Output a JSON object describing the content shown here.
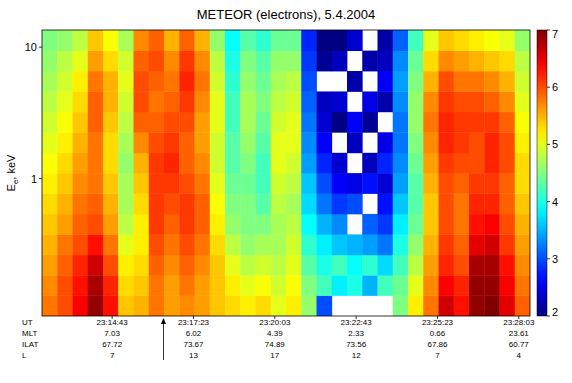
{
  "chart_data": {
    "type": "heatmap",
    "title": "METEOR (electrons), 5.4.2004",
    "ylabel": "Ee, keV",
    "xlabel": "UT",
    "log": "y",
    "xlim": [
      83545,
      84505
    ],
    "ylim": [
      0.09,
      13.5
    ],
    "xticks": [
      {
        "value": 83683,
        "label": "23:14:43"
      },
      {
        "value": 83843,
        "label": "23:17:23"
      },
      {
        "value": 84003,
        "label": "23:20:03"
      },
      {
        "value": 84163,
        "label": "23:22:43"
      },
      {
        "value": 84323,
        "label": "23:25:23"
      },
      {
        "value": 84483,
        "label": "23:28:03"
      }
    ],
    "yticks": [
      1,
      10
    ],
    "x_rows": [
      {
        "name": "MLT",
        "values": [
          7.03,
          6.02,
          4.39,
          2.33,
          0.66,
          23.61
        ]
      },
      {
        "name": "ILAT",
        "values": [
          67.72,
          73.67,
          74.89,
          73.56,
          67.86,
          60.77
        ]
      },
      {
        "name": "L",
        "values": [
          7,
          13,
          17,
          12,
          7,
          4
        ]
      }
    ],
    "arrow_time": 83784,
    "x_edges": [
      83545,
      83575,
      83605,
      83635,
      83665,
      83695,
      83725,
      83755,
      83785,
      83815,
      83845,
      83875,
      83905,
      83935,
      83965,
      83995,
      84025,
      84055,
      84085,
      84115,
      84145,
      84175,
      84205,
      84235,
      84265,
      84295,
      84325,
      84355,
      84385,
      84415,
      84445,
      84475,
      84505
    ],
    "y_edges": [
      0.09,
      0.129,
      0.184,
      0.263,
      0.376,
      0.538,
      0.77,
      1.1,
      1.57,
      2.25,
      3.22,
      4.6,
      6.58,
      9.41,
      13.5
    ],
    "cells": [
      [
        5.8,
        5.7,
        5.6,
        5.5,
        5.4,
        5.3,
        5.2,
        5.1,
        5.0,
        4.9,
        4.8,
        4.7,
        4.6,
        4.5
      ],
      [
        6.0,
        6.0,
        5.9,
        5.8,
        5.6,
        5.5,
        5.4,
        5.3,
        5.2,
        5.1,
        5.0,
        4.9,
        4.8,
        4.6
      ],
      [
        6.4,
        6.3,
        6.2,
        6.0,
        5.9,
        5.8,
        5.7,
        5.6,
        5.5,
        5.4,
        5.3,
        5.2,
        5.0,
        4.8
      ],
      [
        6.9,
        6.8,
        6.6,
        6.3,
        6.0,
        5.9,
        5.8,
        5.8,
        5.8,
        5.9,
        5.9,
        5.8,
        5.6,
        5.4
      ],
      [
        6.3,
        6.2,
        6.0,
        5.8,
        5.6,
        5.5,
        5.4,
        5.3,
        5.3,
        5.4,
        5.5,
        5.5,
        5.3,
        5.1
      ],
      [
        5.4,
        5.3,
        5.2,
        5.0,
        4.8,
        4.7,
        4.7,
        4.6,
        4.7,
        4.8,
        4.9,
        5.0,
        4.9,
        4.7
      ],
      [
        5.5,
        5.4,
        5.3,
        5.2,
        5.2,
        5.3,
        5.4,
        5.5,
        5.7,
        5.9,
        6.0,
        6.0,
        5.9,
        5.7
      ],
      [
        5.8,
        5.8,
        5.9,
        6.0,
        6.1,
        6.1,
        6.1,
        6.1,
        6.0,
        5.9,
        5.8,
        5.9,
        6.0,
        5.9
      ],
      [
        5.6,
        5.6,
        5.7,
        5.8,
        5.9,
        6.0,
        6.1,
        6.2,
        6.1,
        6.0,
        5.9,
        5.8,
        5.7,
        5.5
      ],
      [
        5.7,
        5.8,
        5.9,
        6.0,
        6.1,
        6.1,
        6.0,
        5.9,
        5.9,
        6.0,
        6.1,
        6.2,
        6.1,
        5.9
      ],
      [
        5.6,
        5.6,
        5.7,
        5.8,
        5.9,
        5.9,
        5.8,
        5.7,
        5.6,
        5.6,
        5.7,
        5.8,
        5.7,
        5.5
      ],
      [
        5.4,
        5.4,
        5.4,
        5.3,
        5.2,
        5.1,
        5.0,
        4.9,
        4.9,
        5.0,
        5.0,
        4.9,
        4.8,
        4.6
      ],
      [
        5.3,
        5.2,
        5.0,
        4.8,
        4.6,
        4.5,
        4.4,
        4.3,
        4.3,
        4.2,
        4.2,
        4.1,
        4.0,
        3.9
      ],
      [
        5.2,
        5.0,
        4.8,
        4.6,
        4.5,
        4.5,
        4.4,
        4.5,
        4.6,
        4.7,
        4.7,
        4.6,
        4.5,
        4.3
      ],
      [
        5.3,
        5.1,
        4.9,
        4.7,
        4.5,
        4.3,
        4.2,
        4.2,
        4.3,
        4.4,
        4.5,
        4.4,
        4.3,
        4.1
      ],
      [
        5.0,
        4.9,
        4.8,
        4.7,
        4.7,
        4.8,
        4.9,
        5.0,
        5.0,
        4.9,
        4.8,
        4.7,
        4.6,
        4.4
      ],
      [
        5.2,
        5.1,
        5.0,
        4.9,
        4.8,
        4.7,
        4.8,
        4.9,
        5.0,
        5.0,
        4.9,
        4.8,
        4.6,
        4.4
      ],
      [
        4.6,
        4.5,
        4.3,
        4.1,
        3.9,
        3.7,
        3.6,
        3.4,
        3.3,
        3.2,
        3.1,
        3.0,
        2.9,
        2.8
      ],
      [
        3.0,
        4.2,
        4.0,
        3.8,
        3.5,
        3.2,
        3.0,
        2.8,
        2.6,
        2.4,
        2.3,
        null,
        2.1,
        2.0
      ],
      [
        null,
        3.8,
        4.2,
        3.6,
        3.3,
        2.9,
        2.6,
        2.4,
        null,
        2.0,
        2.4,
        null,
        2.3,
        2.0
      ],
      [
        null,
        4.0,
        3.9,
        3.5,
        null,
        3.0,
        2.5,
        null,
        2.3,
        2.6,
        null,
        2.2,
        null,
        2.4
      ],
      [
        null,
        3.5,
        4.1,
        3.4,
        3.1,
        null,
        2.7,
        2.3,
        null,
        2.1,
        2.5,
        null,
        2.2,
        null
      ],
      [
        null,
        4.2,
        3.7,
        3.2,
        2.9,
        2.7,
        2.4,
        2.8,
        2.5,
        null,
        2.2,
        2.6,
        2.3,
        2.2
      ],
      [
        4.5,
        4.4,
        4.2,
        4.0,
        3.8,
        3.6,
        3.4,
        3.3,
        3.2,
        3.2,
        3.3,
        3.4,
        3.3,
        3.1
      ],
      [
        5.2,
        5.0,
        4.8,
        4.6,
        4.4,
        4.3,
        4.3,
        4.4,
        4.5,
        4.6,
        4.6,
        4.5,
        4.4,
        4.2
      ],
      [
        5.8,
        5.7,
        5.6,
        5.5,
        5.4,
        5.4,
        5.5,
        5.6,
        5.7,
        5.8,
        5.7,
        5.5,
        5.3,
        5.0
      ],
      [
        6.6,
        6.4,
        6.2,
        6.1,
        6.0,
        6.0,
        6.0,
        6.1,
        6.2,
        6.2,
        6.1,
        6.0,
        5.7,
        5.4
      ],
      [
        6.3,
        6.2,
        6.0,
        5.9,
        5.8,
        5.8,
        5.9,
        6.0,
        6.1,
        6.1,
        6.0,
        5.8,
        5.6,
        5.3
      ],
      [
        6.9,
        6.9,
        6.8,
        6.5,
        6.3,
        6.2,
        6.1,
        6.0,
        6.0,
        6.1,
        6.0,
        5.8,
        5.5,
        5.2
      ],
      [
        7.0,
        6.9,
        6.8,
        6.6,
        6.4,
        6.2,
        6.1,
        6.2,
        6.2,
        6.1,
        5.9,
        5.7,
        5.4,
        5.1
      ],
      [
        6.5,
        6.4,
        6.3,
        6.1,
        6.0,
        5.9,
        5.9,
        6.0,
        6.0,
        5.9,
        5.7,
        5.5,
        5.3,
        5.0
      ],
      [
        5.9,
        5.8,
        5.7,
        5.6,
        5.5,
        5.4,
        5.3,
        5.3,
        5.2,
        5.1,
        5.0,
        4.9,
        4.8,
        4.6
      ]
    ],
    "colorbar": {
      "range": [
        2,
        7
      ],
      "ticks": [
        2,
        3,
        4,
        5,
        6,
        7
      ]
    }
  }
}
